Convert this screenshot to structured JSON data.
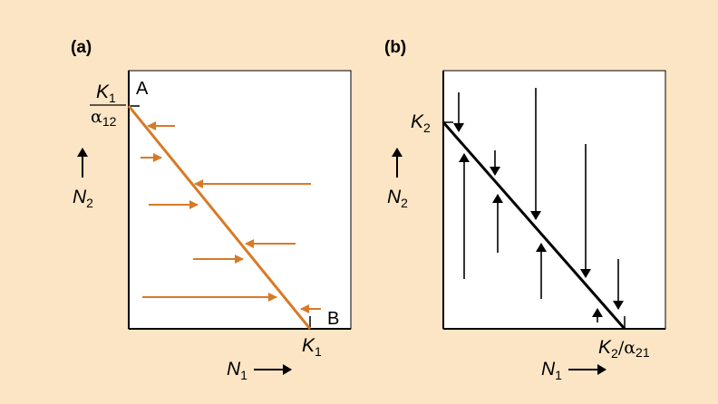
{
  "colors": {
    "background": "#fbe5c4",
    "panel_fill": "#ffffff",
    "accent_orange": "#d77a27",
    "ink": "#000000"
  },
  "panel_a": {
    "label": "(a)",
    "y_intercept_top": "K",
    "y_intercept_top_sub": "1",
    "y_intercept_bottom": "α",
    "y_intercept_bottom_sub": "12",
    "point_a": "A",
    "point_b": "B",
    "x_intercept": "K",
    "x_intercept_sub": "1",
    "y_axis_label": "N",
    "y_axis_sub": "2",
    "x_axis_label": "N",
    "x_axis_sub": "1"
  },
  "panel_b": {
    "label": "(b)",
    "y_intercept": "K",
    "y_intercept_sub": "2",
    "x_intercept_pre": "K",
    "x_intercept_pre_sub": "2",
    "x_intercept_slash": "/α",
    "x_intercept_post_sub": "21",
    "y_axis_label": "N",
    "y_axis_sub": "2",
    "x_axis_label": "N",
    "x_axis_sub": "1"
  }
}
